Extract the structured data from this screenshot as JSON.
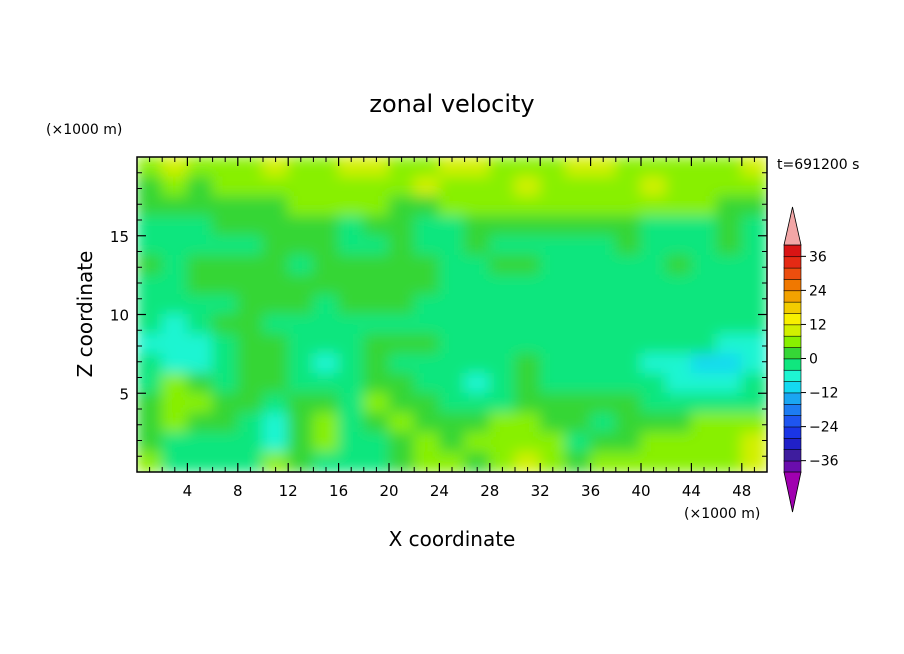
{
  "chart_data": {
    "type": "heatmap",
    "title": "zonal velocity",
    "xlabel": "X coordinate",
    "ylabel": "Z coordinate",
    "x_unit": "(×1000 m)",
    "y_unit": "(×1000 m)",
    "time_label": "t=691200 s",
    "xlim": [
      0,
      50
    ],
    "ylim": [
      0,
      20
    ],
    "x_ticks": [
      4,
      8,
      12,
      16,
      20,
      24,
      28,
      32,
      36,
      40,
      44,
      48
    ],
    "y_ticks": [
      5,
      10,
      15
    ],
    "colorbar": {
      "levels": [
        -40,
        -36,
        -32,
        -28,
        -24,
        -20,
        -16,
        -12,
        -8,
        -4,
        0,
        4,
        8,
        12,
        16,
        20,
        24,
        28,
        32,
        36,
        40
      ],
      "tick_labels": [
        36,
        24,
        12,
        0,
        -12,
        -24,
        -36
      ],
      "colors": [
        "#6a0dad",
        "#3e1d9e",
        "#2020c8",
        "#1a35e6",
        "#1e55f0",
        "#1d7cf2",
        "#1aa6f2",
        "#14d9f0",
        "#1ef5d2",
        "#10e67e",
        "#36d636",
        "#88f000",
        "#d2f000",
        "#f8f000",
        "#f2cc00",
        "#f2a200",
        "#f07800",
        "#ec4e0e",
        "#e52a14",
        "#d91414"
      ],
      "under_color": "#a000b0",
      "over_color": "#f2a6a6"
    },
    "field": [
      [
        4,
        8,
        4,
        4,
        4,
        8,
        4,
        4,
        8,
        8,
        4,
        4,
        8,
        8,
        4,
        4,
        4,
        8,
        8,
        4,
        4,
        4,
        4,
        4,
        8
      ],
      [
        0,
        4,
        0,
        4,
        4,
        4,
        4,
        4,
        4,
        4,
        4,
        8,
        4,
        4,
        4,
        8,
        4,
        4,
        4,
        4,
        8,
        4,
        4,
        4,
        4
      ],
      [
        0,
        0,
        0,
        0,
        0,
        0,
        4,
        4,
        4,
        4,
        0,
        0,
        4,
        4,
        4,
        4,
        4,
        4,
        4,
        4,
        4,
        4,
        4,
        0,
        0
      ],
      [
        -4,
        -4,
        -4,
        0,
        0,
        0,
        0,
        0,
        -4,
        0,
        0,
        -4,
        -4,
        0,
        0,
        0,
        0,
        0,
        0,
        0,
        -4,
        -4,
        -4,
        0,
        -4
      ],
      [
        -4,
        -4,
        -4,
        -4,
        -4,
        0,
        0,
        0,
        -4,
        -4,
        0,
        -4,
        -4,
        0,
        -4,
        -4,
        -4,
        -4,
        -4,
        0,
        -4,
        -4,
        -4,
        0,
        -4
      ],
      [
        0,
        -4,
        0,
        0,
        0,
        0,
        -4,
        0,
        0,
        0,
        0,
        0,
        -4,
        -4,
        0,
        0,
        -4,
        -4,
        -4,
        -4,
        -4,
        0,
        -4,
        -4,
        -4
      ],
      [
        -4,
        -4,
        0,
        0,
        0,
        0,
        0,
        0,
        0,
        0,
        0,
        0,
        -4,
        -4,
        -4,
        -4,
        -4,
        -4,
        -4,
        -4,
        -4,
        -4,
        -4,
        -4,
        -4
      ],
      [
        -4,
        -4,
        -4,
        -4,
        0,
        0,
        0,
        -4,
        0,
        0,
        0,
        -4,
        -4,
        -4,
        -4,
        -4,
        -4,
        -4,
        -4,
        -4,
        -4,
        -4,
        -4,
        -4,
        -4
      ],
      [
        -4,
        -8,
        -4,
        0,
        0,
        -4,
        -4,
        -4,
        -4,
        -4,
        -4,
        -4,
        -4,
        -4,
        -4,
        -4,
        -4,
        -4,
        -4,
        -4,
        -4,
        -4,
        -4,
        -4,
        -4
      ],
      [
        -8,
        -8,
        -8,
        -4,
        0,
        0,
        -4,
        -4,
        -4,
        0,
        0,
        0,
        -4,
        -4,
        -4,
        -4,
        -4,
        -4,
        -4,
        -4,
        -4,
        -4,
        -4,
        -8,
        -8
      ],
      [
        -4,
        -8,
        -8,
        -4,
        0,
        0,
        -4,
        -8,
        -4,
        0,
        -4,
        -4,
        -4,
        -4,
        -4,
        0,
        -4,
        -4,
        -4,
        -4,
        -8,
        -8,
        -12,
        -12,
        -8
      ],
      [
        -4,
        4,
        0,
        -4,
        0,
        0,
        -4,
        -4,
        -4,
        0,
        0,
        -4,
        -4,
        -8,
        -4,
        0,
        -4,
        -4,
        -4,
        -4,
        -4,
        -8,
        -8,
        -8,
        -4
      ],
      [
        0,
        4,
        4,
        0,
        0,
        -4,
        0,
        0,
        -4,
        4,
        0,
        0,
        -4,
        -4,
        -4,
        0,
        0,
        0,
        0,
        0,
        -4,
        -4,
        -4,
        -4,
        -4
      ],
      [
        0,
        4,
        0,
        0,
        -4,
        -8,
        0,
        4,
        -4,
        0,
        4,
        0,
        0,
        0,
        4,
        4,
        0,
        0,
        -4,
        0,
        0,
        0,
        4,
        4,
        4
      ],
      [
        0,
        -4,
        -4,
        -4,
        -4,
        -8,
        0,
        4,
        -4,
        -4,
        0,
        4,
        0,
        4,
        4,
        4,
        4,
        -4,
        0,
        0,
        4,
        4,
        4,
        4,
        8
      ],
      [
        4,
        -4,
        -4,
        -4,
        -4,
        4,
        0,
        -4,
        -4,
        -4,
        0,
        4,
        4,
        0,
        4,
        8,
        4,
        0,
        4,
        4,
        4,
        4,
        4,
        4,
        8
      ]
    ]
  }
}
